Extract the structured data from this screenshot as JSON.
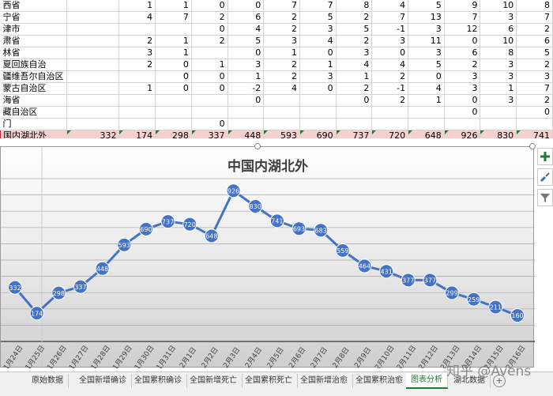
{
  "sheet": {
    "rows": [
      {
        "name": "西省",
        "vals": [
          "1",
          "1",
          "0",
          "0",
          "7",
          "7",
          "8",
          "4",
          "5",
          "9",
          "10",
          "8"
        ]
      },
      {
        "name": "宁省",
        "vals": [
          "4",
          "7",
          "2",
          "6",
          "2",
          "5",
          "2",
          "7",
          "13",
          "7",
          "3",
          "7"
        ]
      },
      {
        "name": "津市",
        "vals": [
          "",
          "",
          "0",
          "4",
          "2",
          "3",
          "5",
          "-1",
          "3",
          "12",
          "6",
          "2"
        ]
      },
      {
        "name": "肃省",
        "vals": [
          "2",
          "1",
          "2",
          "5",
          "3",
          "4",
          "2",
          "3",
          "11",
          "0",
          "10",
          "6"
        ]
      },
      {
        "name": "林省",
        "vals": [
          "3",
          "1",
          "",
          "0",
          "1",
          "0",
          "3",
          "0",
          "3",
          "6",
          "8",
          "5"
        ]
      },
      {
        "name": "夏回族自治",
        "vals": [
          "2",
          "0",
          "1",
          "3",
          "2",
          "1",
          "4",
          "4",
          "5",
          "2",
          "3",
          "2"
        ]
      },
      {
        "name": "疆维吾尔自治区",
        "vals": [
          "",
          "0",
          "0",
          "1",
          "2",
          "3",
          "1",
          "2",
          "0",
          "3",
          "3",
          "3"
        ]
      },
      {
        "name": "蒙古自治区",
        "vals": [
          "1",
          "0",
          "0",
          "-2",
          "4",
          "0",
          "2",
          "-1",
          "4",
          "3",
          "1",
          "7"
        ]
      },
      {
        "name": "海省",
        "vals": [
          "",
          "",
          "",
          "0",
          "",
          "",
          "0",
          "2",
          "1",
          "0",
          "3",
          "2"
        ]
      },
      {
        "name": "藏自治区",
        "vals": [
          "",
          "",
          "",
          "",
          "",
          "",
          "",
          "",
          "",
          "0",
          "",
          "0"
        ]
      },
      {
        "name": "门",
        "vals": [
          "",
          "",
          "0",
          "",
          "",
          "",
          "",
          "",
          "",
          "",
          "",
          ""
        ]
      }
    ],
    "total_row": {
      "name": "国内湖北外",
      "vals": [
        "332",
        "174",
        "298",
        "337",
        "448",
        "593",
        "690",
        "737",
        "720",
        "648",
        "926",
        "830",
        "741"
      ]
    }
  },
  "chart_data": {
    "type": "line",
    "title": "中国内湖北外",
    "categories": [
      "1月24日",
      "1月25日",
      "1月26日",
      "1月27日",
      "1月28日",
      "1月29日",
      "1月30日",
      "1月31日",
      "2月1日",
      "2月2日",
      "2月3日",
      "2月4日",
      "2月5日",
      "2月6日",
      "2月7日",
      "2月8日",
      "2月9日",
      "2月10日",
      "2月11日",
      "2月12日",
      "2月13日",
      "2月14日",
      "2月15日",
      "2月16日"
    ],
    "series": [
      {
        "values": [
          332,
          174,
          298,
          337,
          448,
          593,
          690,
          737,
          720,
          648,
          926,
          830,
          741,
          693,
          683,
          559,
          464,
          431,
          377,
          377,
          299,
          259,
          211,
          160
        ]
      }
    ],
    "ylim": [
      0,
      1000
    ],
    "grid": true,
    "legend": "none",
    "color": "#4472c4"
  },
  "tabs": [
    "原始数据",
    "全国新增确诊",
    "全国累积确诊",
    "全国新增死亡",
    "全国累积死亡",
    "全国新增治愈",
    "全国累积治愈",
    "图表分析",
    "湖北数据"
  ],
  "active_tab": "图表分析",
  "watermark": "知乎 @Avens"
}
